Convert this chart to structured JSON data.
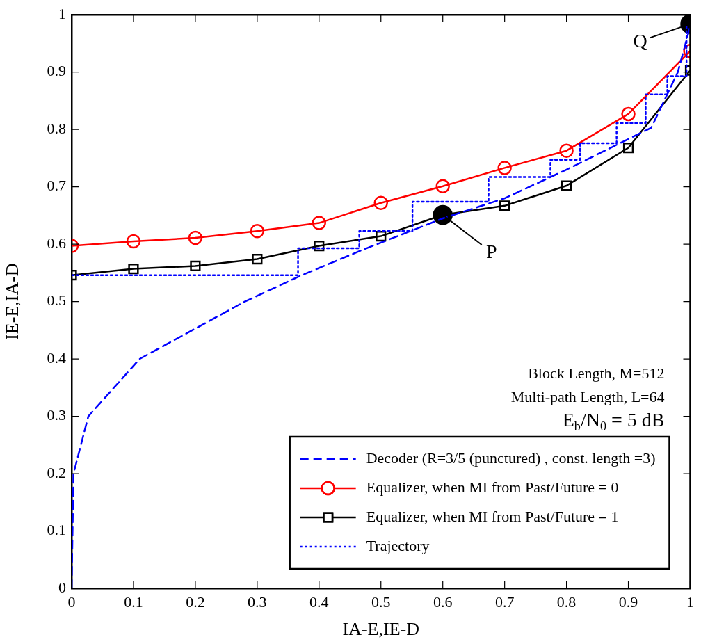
{
  "chart_data": {
    "type": "line",
    "xlabel": "IA-E,IE-D",
    "ylabel": "IE-E,IA-D",
    "xlim": [
      0,
      1
    ],
    "ylim": [
      0,
      1
    ],
    "xticks": [
      0,
      0.1,
      0.2,
      0.3,
      0.4,
      0.5,
      0.6,
      0.7,
      0.8,
      0.9,
      1
    ],
    "yticks": [
      0,
      0.1,
      0.2,
      0.3,
      0.4,
      0.5,
      0.6,
      0.7,
      0.8,
      0.9,
      1
    ],
    "legend": "bottom right",
    "series": [
      {
        "name": "Decoder (R=3/5 (punctured) , const. length =3)",
        "color": "#0000ff",
        "line_style": "dashed",
        "marker": "none",
        "x": [
          0,
          0.003,
          0.027,
          0.11,
          0.28,
          0.37,
          0.47,
          0.6,
          0.7,
          0.8,
          0.937,
          0.98,
          1
        ],
        "values": [
          0,
          0.2,
          0.3,
          0.4,
          0.5,
          0.545,
          0.59,
          0.645,
          0.68,
          0.73,
          0.803,
          0.9,
          0.98
        ]
      },
      {
        "name": "Equalizer, when MI from Past/Future = 0",
        "color": "#ff0000",
        "line_style": "solid",
        "marker": "circle",
        "x": [
          0,
          0.1,
          0.2,
          0.3,
          0.4,
          0.5,
          0.6,
          0.7,
          0.8,
          0.9,
          1
        ],
        "values": [
          0.597,
          0.605,
          0.611,
          0.623,
          0.637,
          0.672,
          0.701,
          0.733,
          0.763,
          0.827,
          0.937
        ]
      },
      {
        "name": "Equalizer, when MI from Past/Future = 1",
        "color": "#000000",
        "line_style": "solid",
        "marker": "square",
        "x": [
          0,
          0.1,
          0.2,
          0.3,
          0.4,
          0.5,
          0.6,
          0.7,
          0.8,
          0.9,
          1
        ],
        "values": [
          0.546,
          0.557,
          0.562,
          0.574,
          0.597,
          0.614,
          0.651,
          0.667,
          0.702,
          0.768,
          0.903
        ]
      },
      {
        "name": "Trajectory",
        "color": "#0000ff",
        "line_style": "dotted",
        "marker": "none",
        "x": [
          0,
          0.366,
          0.366,
          0.465,
          0.465,
          0.551,
          0.551,
          0.674,
          0.674,
          0.774,
          0.774,
          0.822,
          0.822,
          0.881,
          0.881,
          0.928,
          0.928,
          0.963,
          0.963,
          0.994,
          0.994
        ],
        "values": [
          0.546,
          0.546,
          0.593,
          0.593,
          0.623,
          0.623,
          0.674,
          0.674,
          0.717,
          0.717,
          0.747,
          0.747,
          0.776,
          0.776,
          0.811,
          0.811,
          0.861,
          0.861,
          0.893,
          0.893,
          0.98
        ]
      },
      {
        "type": "scatter",
        "color": "#000000",
        "marker": "circle",
        "x": [
          0.6,
          1
        ],
        "values": [
          0.651,
          0.984
        ]
      }
    ],
    "annotations": [
      "Block Length, M=512",
      "Multi-path Length, L=64",
      "E$_{b}$/N$_{0}$ = 5 dB",
      {
        "text": "P",
        "x": 0.6,
        "y": 0.651
      },
      {
        "text": "Q",
        "x": 1,
        "y": 0.984
      }
    ]
  }
}
